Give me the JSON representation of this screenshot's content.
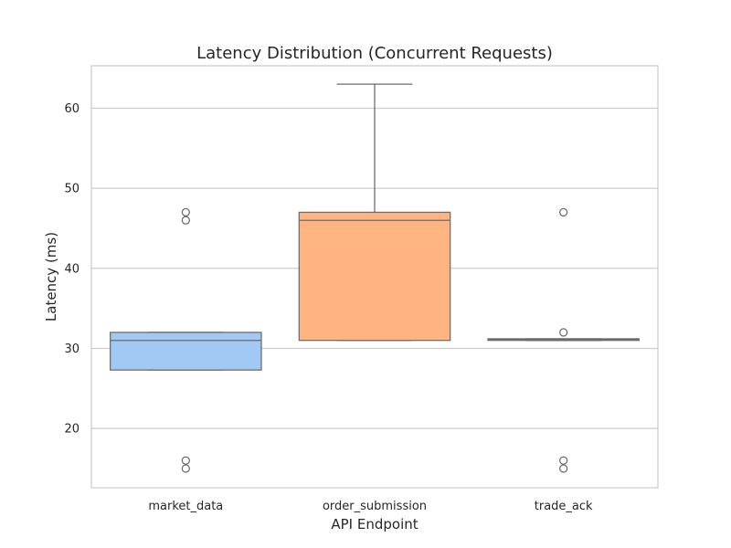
{
  "chart_data": {
    "type": "box",
    "title": "Latency Distribution (Concurrent Requests)",
    "xlabel": "API Endpoint",
    "ylabel": "Latency (ms)",
    "ylim": [
      12.6,
      65.3
    ],
    "yticks": [
      20,
      30,
      40,
      50,
      60
    ],
    "grid": true,
    "categories": [
      "market_data",
      "order_submission",
      "trade_ack"
    ],
    "colors": [
      "#a1c9f4",
      "#ffb482",
      "#8de5a1"
    ],
    "boxes": [
      {
        "category": "market_data",
        "q1": 27.3,
        "median": 31.0,
        "q3": 32.0,
        "whisker_low": 27.3,
        "whisker_high": 32.0,
        "outliers": [
          47.0,
          46.0,
          16.0,
          15.0
        ]
      },
      {
        "category": "order_submission",
        "q1": 31.0,
        "median": 46.0,
        "q3": 47.0,
        "whisker_low": 31.0,
        "whisker_high": 63.0,
        "outliers": []
      },
      {
        "category": "trade_ack",
        "q1": 31.0,
        "median": 31.1,
        "q3": 31.2,
        "whisker_low": 31.0,
        "whisker_high": 31.2,
        "outliers": [
          47.0,
          32.0,
          16.0,
          15.0
        ]
      }
    ]
  }
}
